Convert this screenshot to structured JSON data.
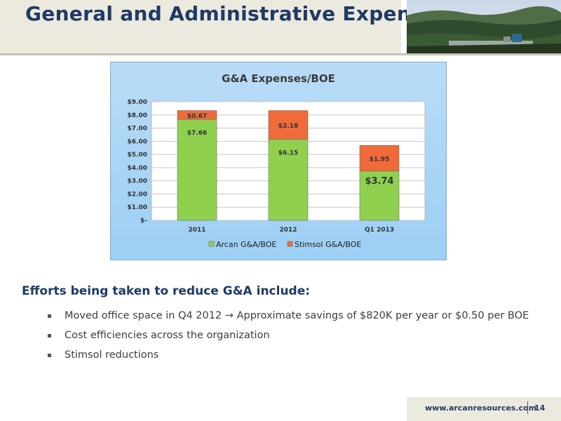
{
  "header": {
    "title": "General and Administrative Expense"
  },
  "efforts": {
    "heading": "Efforts being taken to reduce G&A include:",
    "bullets": [
      "Moved office space in Q4 2012 → Approximate savings of $820K per year or $0.50 per BOE",
      "Cost efficiencies across the organization",
      "Stimsol reductions"
    ]
  },
  "footer": {
    "url": "www.arcanresources.com",
    "page": "14"
  },
  "chart_data": {
    "type": "bar",
    "stacked": true,
    "title": "G&A Expenses/BOE",
    "categories": [
      "2011",
      "2012",
      "Q1 2013"
    ],
    "series": [
      {
        "name": "Arcan G&A/BOE",
        "values": [
          7.66,
          6.15,
          3.74
        ],
        "labels": [
          "$7.66",
          "$6.15",
          "$3.74"
        ],
        "color": "#8fd14f"
      },
      {
        "name": "Stimsol G&A/BOE",
        "values": [
          0.67,
          2.18,
          1.95
        ],
        "labels": [
          "$0.67",
          "$2.18",
          "$1.95"
        ],
        "color": "#f06a3a"
      }
    ],
    "ylim": [
      0,
      9
    ],
    "yticks": [
      {
        "value": 0,
        "label": "$-"
      },
      {
        "value": 1,
        "label": "$1.00"
      },
      {
        "value": 2,
        "label": "$2.00"
      },
      {
        "value": 3,
        "label": "$3.00"
      },
      {
        "value": 4,
        "label": "$4.00"
      },
      {
        "value": 5,
        "label": "$5.00"
      },
      {
        "value": 6,
        "label": "$6.00"
      },
      {
        "value": 7,
        "label": "$7.00"
      },
      {
        "value": 8,
        "label": "$8.00"
      },
      {
        "value": 9,
        "label": "$9.00"
      }
    ],
    "grid": true,
    "legend": "bottom"
  }
}
